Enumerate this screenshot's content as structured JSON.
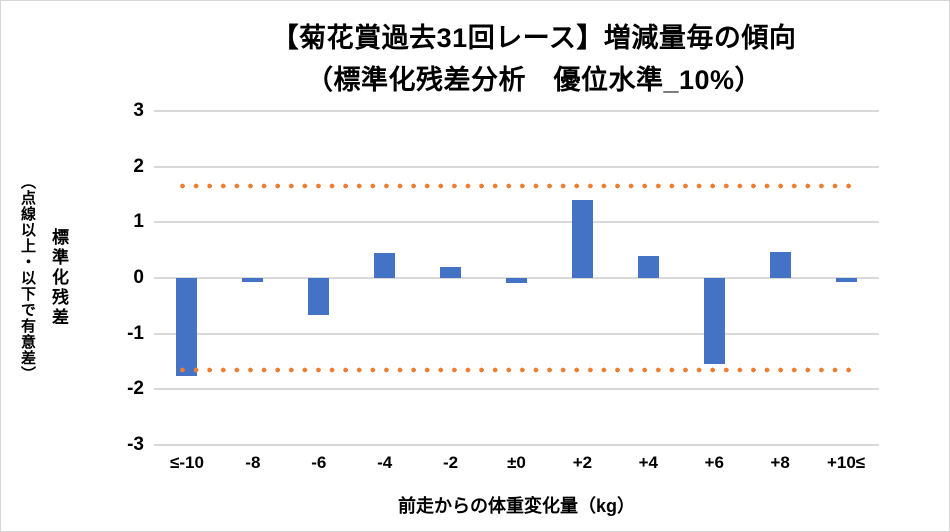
{
  "title": {
    "line1": "【菊花賞過去31回レース】増減量毎の傾向",
    "line2": "（標準化残差分析　優位水準_10%）"
  },
  "y_axis": {
    "title_main": "標準化残差",
    "title_sub": "（点線以上・以下で有意差）"
  },
  "x_axis": {
    "title": "前走からの体重変化量（kg）"
  },
  "chart_data": {
    "type": "bar",
    "title": "【菊花賞過去31回レース】増減量毎の傾向（標準化残差分析　優位水準_10%）",
    "categories": [
      "≤-10",
      "-8",
      "-6",
      "-4",
      "-2",
      "±0",
      "+2",
      "+4",
      "+6",
      "+8",
      "+10≤"
    ],
    "values": [
      -1.76,
      -0.08,
      -0.66,
      0.45,
      0.2,
      -0.09,
      1.41,
      0.4,
      -1.54,
      0.47,
      -0.08
    ],
    "xlabel": "前走からの体重変化量（kg）",
    "ylabel": "標準化残差（点線以上・以下で有意差）",
    "ylim": [
      -3,
      3
    ],
    "yticks": [
      3,
      2,
      1,
      0,
      -1,
      -2,
      -3
    ],
    "significance_lines": {
      "values": [
        1.645,
        -1.645
      ],
      "style": "dotted",
      "color": "#ED7D31"
    },
    "bar_color": "#4472C4",
    "gridline_color": "#D9D9D9",
    "grid": true,
    "legend": false
  }
}
